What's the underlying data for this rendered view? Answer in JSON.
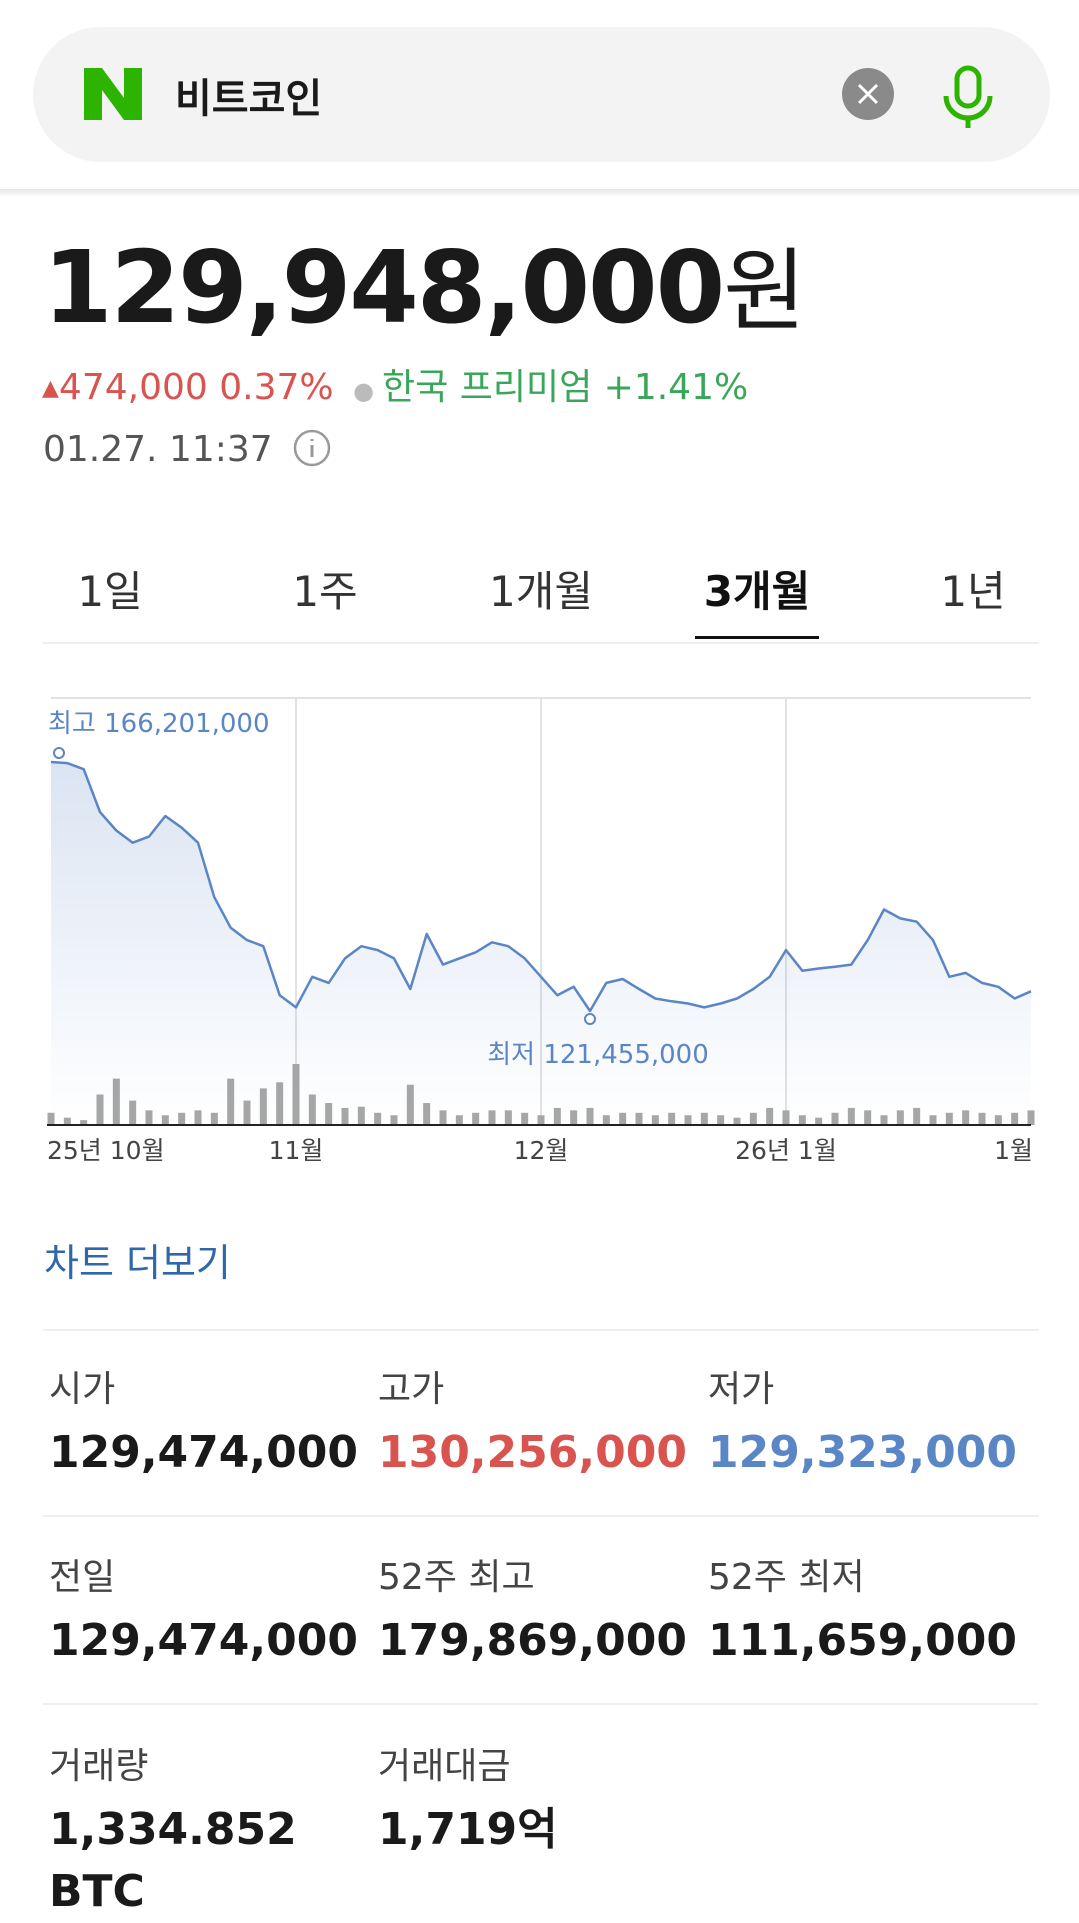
{
  "search": {
    "query": "비트코인"
  },
  "quote": {
    "price": "129,948,000",
    "unit": "원",
    "change": "474,000",
    "change_pct": "0.37%",
    "premium_label": "한국 프리미엄",
    "premium": "+1.41%",
    "timestamp": "01.27. 11:37"
  },
  "tabs": {
    "items": [
      "1일",
      "1주",
      "1개월",
      "3개월",
      "1년"
    ],
    "active": 3
  },
  "chart_data": {
    "type": "line",
    "color": "#5b86c5",
    "volume_color": "#a6a6a6",
    "categories": [
      "25년 10월",
      null,
      null,
      null,
      null,
      null,
      null,
      null,
      null,
      null,
      null,
      null,
      null,
      null,
      null,
      "11월",
      null,
      null,
      null,
      null,
      null,
      null,
      null,
      null,
      null,
      null,
      null,
      null,
      null,
      null,
      "12월",
      null,
      null,
      null,
      null,
      null,
      null,
      null,
      null,
      null,
      null,
      null,
      null,
      null,
      null,
      "26년 1월",
      null,
      null,
      null,
      null,
      null,
      null,
      null,
      null,
      null,
      null,
      null,
      null,
      null,
      null,
      "1월"
    ],
    "values": [
      166201000,
      166000000,
      164900000,
      157200000,
      153900000,
      151700000,
      152800000,
      156500000,
      154400000,
      151700000,
      141900000,
      136400000,
      134200000,
      133100000,
      124300000,
      122100000,
      127600000,
      126500000,
      130900000,
      133100000,
      132400000,
      130900000,
      125400000,
      135300000,
      129800000,
      130900000,
      132000000,
      133800000,
      133100000,
      130900000,
      127600000,
      124300000,
      125800000,
      121455000,
      126500000,
      127200000,
      125400000,
      123700000,
      123200000,
      122800000,
      122100000,
      122800000,
      123700000,
      125400000,
      127600000,
      132400000,
      128700000,
      129100000,
      129400000,
      129800000,
      134200000,
      139700000,
      138100000,
      137500000,
      134200000,
      127600000,
      128300000,
      126500000,
      125800000,
      123700000,
      125000000
    ],
    "volume": [
      10,
      6,
      4,
      25,
      38,
      20,
      12,
      8,
      10,
      12,
      10,
      38,
      20,
      30,
      35,
      50,
      25,
      18,
      14,
      15,
      10,
      8,
      33,
      18,
      12,
      8,
      10,
      12,
      12,
      10,
      8,
      14,
      12,
      14,
      8,
      10,
      10,
      8,
      10,
      8,
      10,
      8,
      6,
      10,
      14,
      12,
      8,
      6,
      10,
      14,
      12,
      8,
      12,
      14,
      8,
      10,
      12,
      10,
      8,
      10,
      12
    ],
    "annotations": [
      "최고 166,201,000",
      "최저 121,455,000"
    ]
  },
  "more_link": "차트 더보기",
  "stats": [
    [
      {
        "label": "시가",
        "value": "129,474,000"
      },
      {
        "label": "고가",
        "value": "130,256,000",
        "color": "#d9534f"
      },
      {
        "label": "저가",
        "value": "129,323,000",
        "color": "#5b86c5"
      }
    ],
    [
      {
        "label": "전일",
        "value": "129,474,000"
      },
      {
        "label": "52주 최고",
        "value": "179,869,000"
      },
      {
        "label": "52주 최저",
        "value": "111,659,000"
      }
    ],
    [
      {
        "label": "거래량",
        "value": "1,334.852 BTC"
      },
      {
        "label": "거래대금",
        "value": "1,719억"
      }
    ]
  ]
}
